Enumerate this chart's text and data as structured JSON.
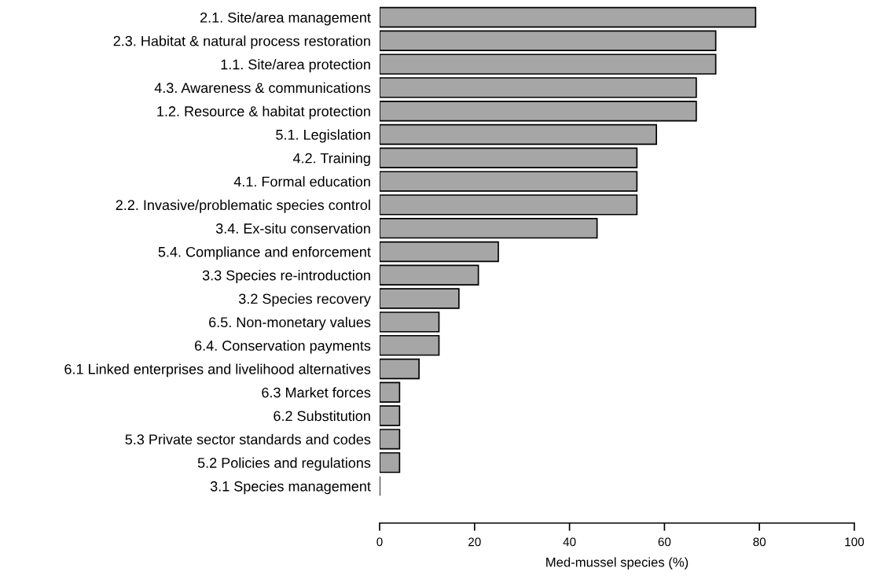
{
  "chart_data": {
    "type": "bar",
    "orientation": "horizontal",
    "xlabel": "Med-mussel species (%)",
    "categories": [
      "2.1. Site/area management",
      "2.3. Habitat & natural process restoration",
      "1.1. Site/area protection",
      "4.3. Awareness & communications",
      "1.2. Resource & habitat protection",
      "5.1. Legislation",
      "4.2. Training",
      "4.1. Formal education",
      "2.2. Invasive/problematic species control",
      "3.4. Ex-situ conservation",
      "5.4. Compliance and enforcement",
      "3.3 Species re-introduction",
      "3.2 Species recovery",
      "6.5. Non-monetary values",
      "6.4. Conservation payments",
      "6.1 Linked enterprises and livelihood alternatives",
      "6.3 Market forces",
      "6.2 Substitution",
      "5.3 Private sector standards and codes",
      "5.2 Policies and regulations",
      "3.1 Species management"
    ],
    "values": [
      79.2,
      70.8,
      70.8,
      66.7,
      66.7,
      58.3,
      54.2,
      54.2,
      54.2,
      45.8,
      25,
      20.8,
      16.7,
      12.5,
      12.5,
      8.3,
      4.2,
      4.2,
      4.2,
      4.2,
      0
    ],
    "colors": [
      "#a6a6a6",
      "#a6a6a6",
      "#a6a6a6",
      "#a6a6a6",
      "#a6a6a6",
      "#a6a6a6",
      "#a6a6a6",
      "#a6a6a6",
      "#a6a6a6",
      "#a6a6a6",
      "#a6a6a6",
      "#a6a6a6",
      "#a6a6a6",
      "#a6a6a6",
      "#a6a6a6",
      "#a6a6a6",
      "#a6a6a6",
      "#a6a6a6",
      "#a6a6a6",
      "#a6a6a6",
      "#000000"
    ],
    "xlim": [
      0,
      100
    ],
    "xticks": [
      0,
      20,
      40,
      60,
      80,
      100
    ],
    "grid": false,
    "legend": false
  }
}
